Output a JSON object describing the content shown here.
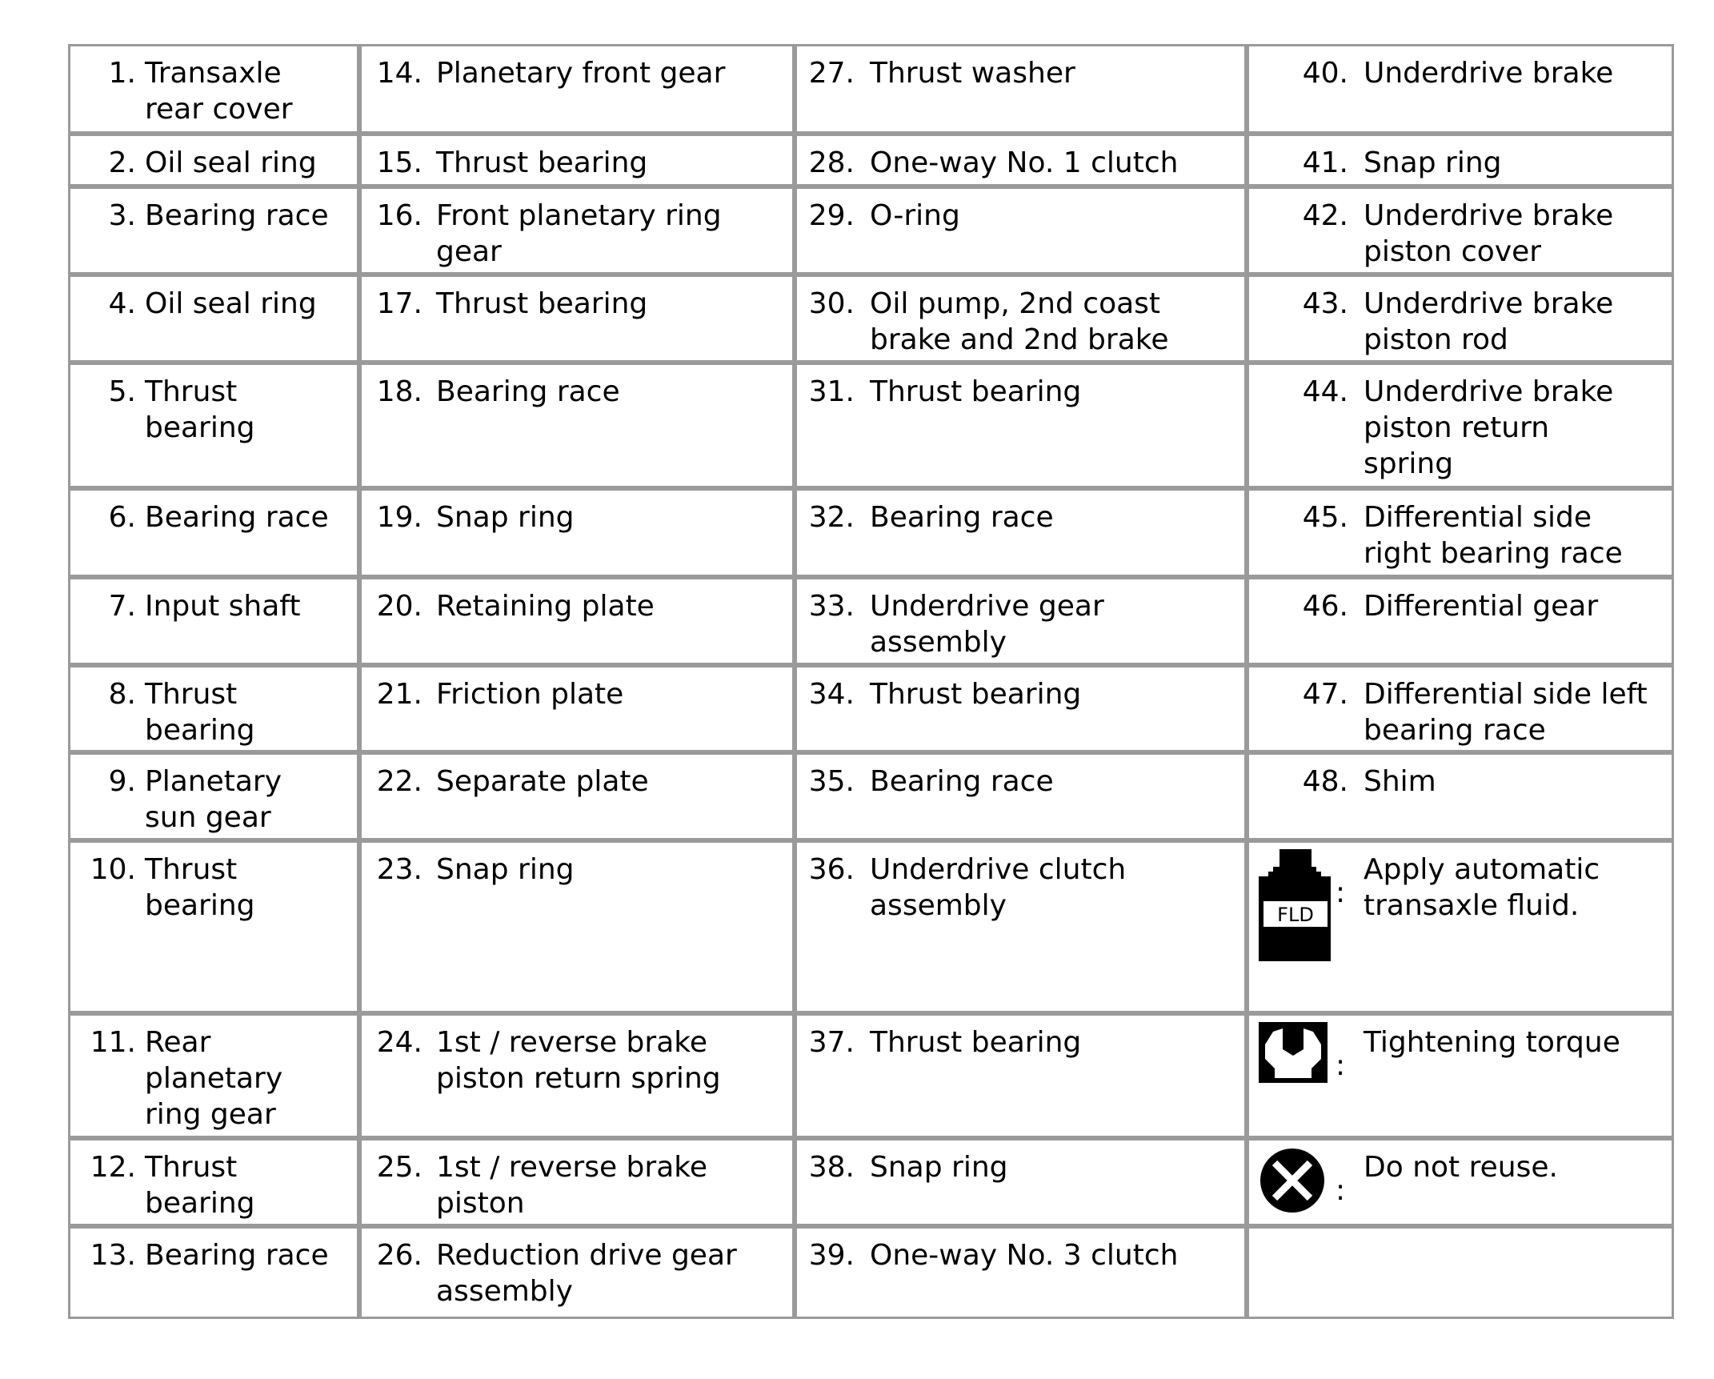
{
  "columns": [
    [
      {
        "num": "1.",
        "text": "Transaxle\nrear cover"
      },
      {
        "num": "2.",
        "text": "Oil seal ring"
      },
      {
        "num": "3.",
        "text": "Bearing race"
      },
      {
        "num": "4.",
        "text": "Oil seal ring"
      },
      {
        "num": "5.",
        "text": "Thrust\nbearing"
      },
      {
        "num": "6.",
        "text": "Bearing race"
      },
      {
        "num": "7.",
        "text": "Input shaft"
      },
      {
        "num": "8.",
        "text": "Thrust\nbearing"
      },
      {
        "num": "9.",
        "text": "Planetary\nsun gear"
      },
      {
        "num": "10.",
        "text": "Thrust\nbearing"
      },
      {
        "num": "11.",
        "text": "Rear\nplanetary\nring gear"
      },
      {
        "num": "12.",
        "text": "Thrust\nbearing"
      },
      {
        "num": "13.",
        "text": "Bearing race"
      }
    ],
    [
      {
        "num": "14.",
        "text": "Planetary front gear"
      },
      {
        "num": "15.",
        "text": "Thrust bearing"
      },
      {
        "num": "16.",
        "text": "Front planetary ring\ngear"
      },
      {
        "num": "17.",
        "text": "Thrust bearing"
      },
      {
        "num": "18.",
        "text": "Bearing race"
      },
      {
        "num": "19.",
        "text": "Snap ring"
      },
      {
        "num": "20.",
        "text": "Retaining plate"
      },
      {
        "num": "21.",
        "text": "Friction plate"
      },
      {
        "num": "22.",
        "text": "Separate plate"
      },
      {
        "num": "23.",
        "text": "Snap ring"
      },
      {
        "num": "24.",
        "text": "1st / reverse brake\npiston return spring"
      },
      {
        "num": "25.",
        "text": "1st / reverse brake\npiston"
      },
      {
        "num": "26.",
        "text": "Reduction drive gear\nassembly"
      }
    ],
    [
      {
        "num": "27.",
        "text": "Thrust washer"
      },
      {
        "num": "28.",
        "text": "One-way No. 1 clutch"
      },
      {
        "num": "29.",
        "text": "O-ring"
      },
      {
        "num": "30.",
        "text": "Oil pump, 2nd coast\nbrake and 2nd brake"
      },
      {
        "num": "31.",
        "text": "Thrust bearing"
      },
      {
        "num": "32.",
        "text": "Bearing race"
      },
      {
        "num": "33.",
        "text": "Underdrive gear\nassembly"
      },
      {
        "num": "34.",
        "text": "Thrust bearing"
      },
      {
        "num": "35.",
        "text": "Bearing race"
      },
      {
        "num": "36.",
        "text": "Underdrive clutch\nassembly"
      },
      {
        "num": "37.",
        "text": "Thrust bearing"
      },
      {
        "num": "38.",
        "text": "Snap ring"
      },
      {
        "num": "39.",
        "text": "One-way No. 3 clutch"
      }
    ],
    [
      {
        "num": "40.",
        "text": "Underdrive brake"
      },
      {
        "num": "41.",
        "text": "Snap ring"
      },
      {
        "num": "42.",
        "text": "Underdrive brake\npiston cover"
      },
      {
        "num": "43.",
        "text": "Underdrive brake\npiston rod"
      },
      {
        "num": "44.",
        "text": "Underdrive brake\npiston return\nspring"
      },
      {
        "num": "45.",
        "text": "Differential side\nright bearing race"
      },
      {
        "num": "46.",
        "text": "Differential gear"
      },
      {
        "num": "47.",
        "text": "Differential side left\nbearing race"
      },
      {
        "num": "48.",
        "text": "Shim"
      },
      {
        "icon": "fluid-bottle-icon",
        "icon_label": "FLD",
        "text": "Apply automatic\ntransaxle fluid."
      },
      {
        "icon": "wrench-icon",
        "text": "Tightening torque"
      },
      {
        "icon": "do-not-reuse-icon",
        "text": "Do not reuse."
      },
      {
        "text": ""
      }
    ]
  ],
  "colors": {
    "border": "#9a9a9a",
    "text": "#000000"
  }
}
